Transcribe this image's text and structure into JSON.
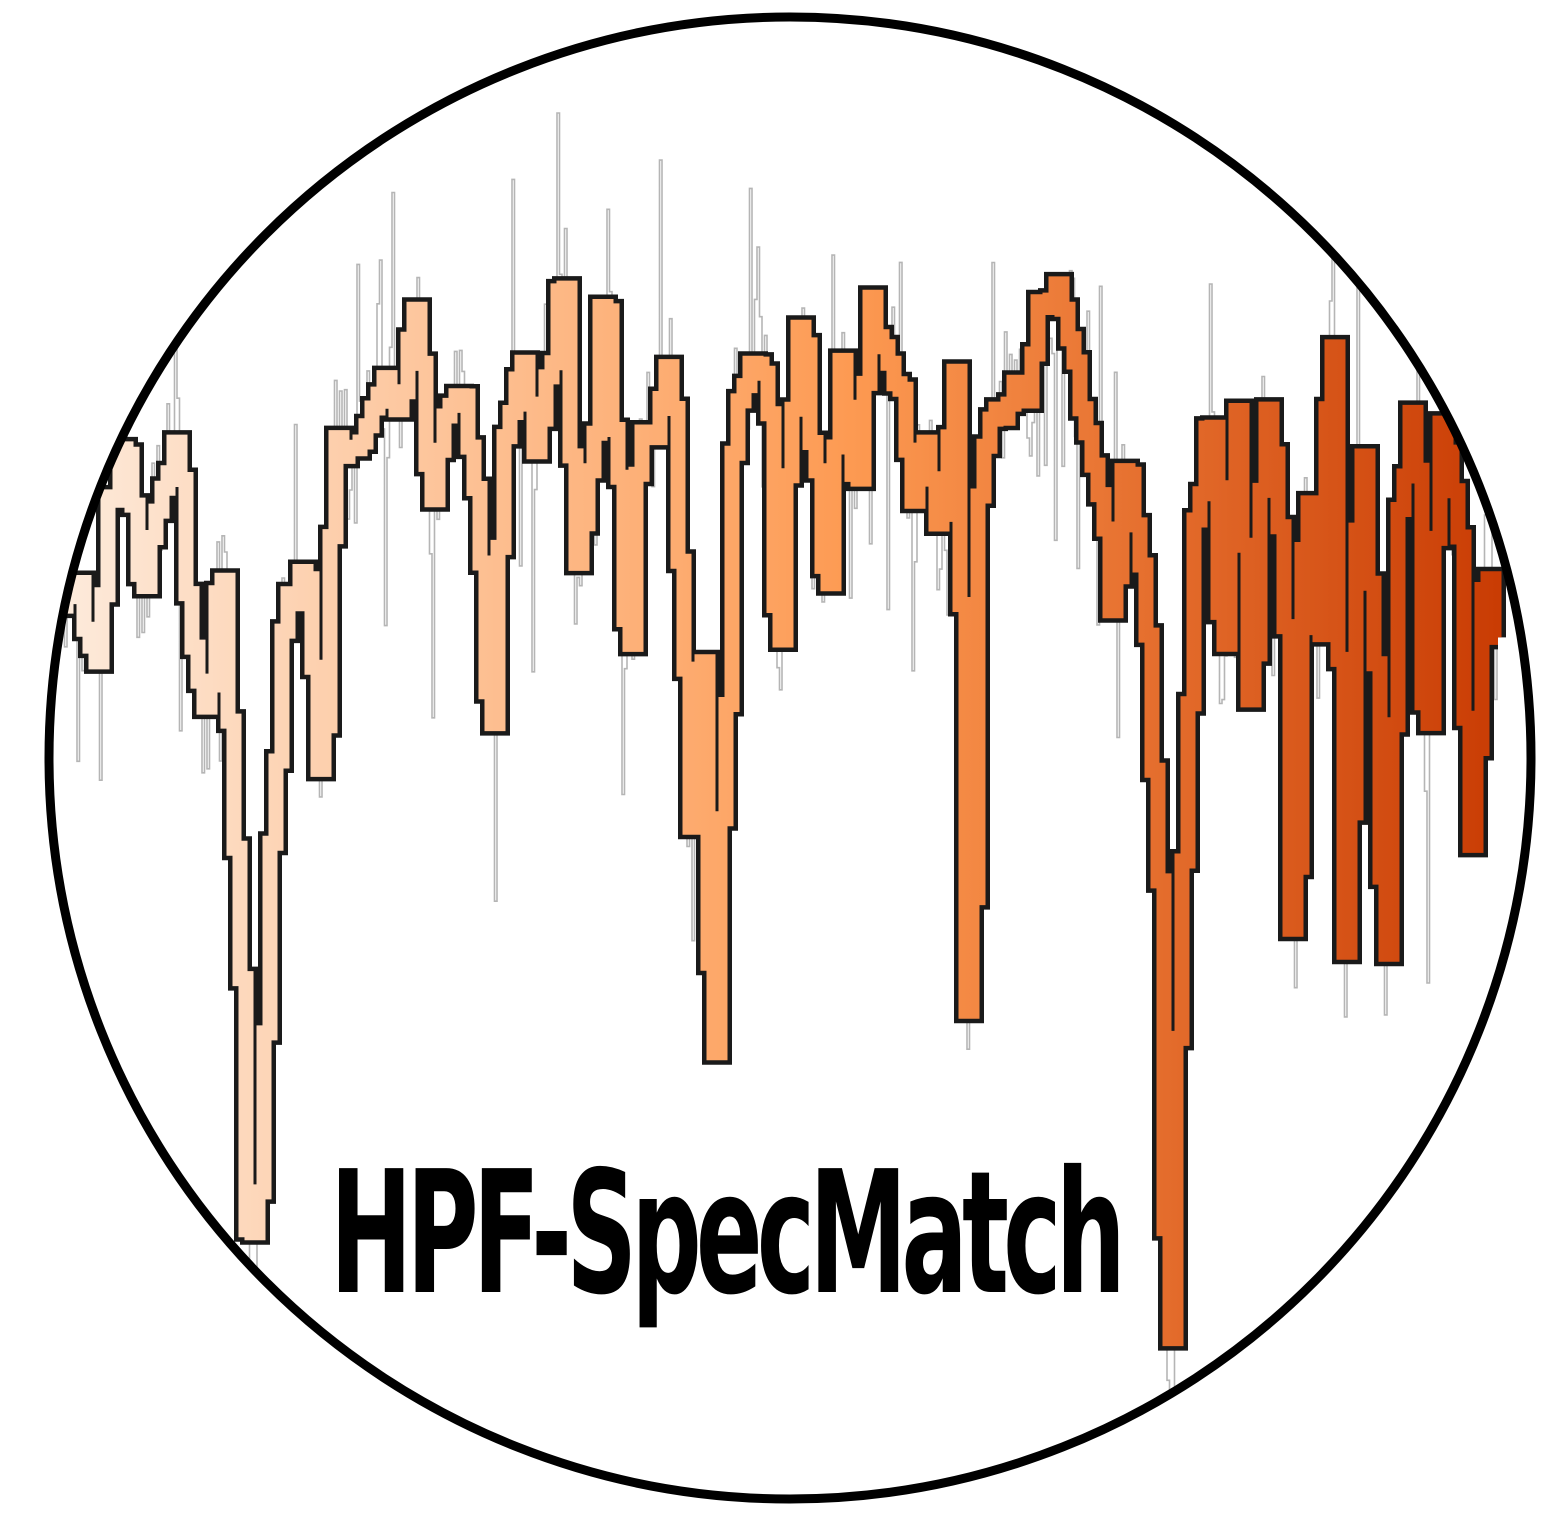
{
  "logo": {
    "title": "HPF-SpecMatch"
  },
  "colors": {
    "background": "#ffffff",
    "circle_stroke": "#000000",
    "title_text": "#000000",
    "noise_line": "#a8a8a8",
    "spectrum_outline": "#1a1a1a",
    "spectrum_gradient_start": "#fdebdc",
    "spectrum_gradient_middle": "#fd9a52",
    "spectrum_gradient_end": "#c93c04"
  }
}
